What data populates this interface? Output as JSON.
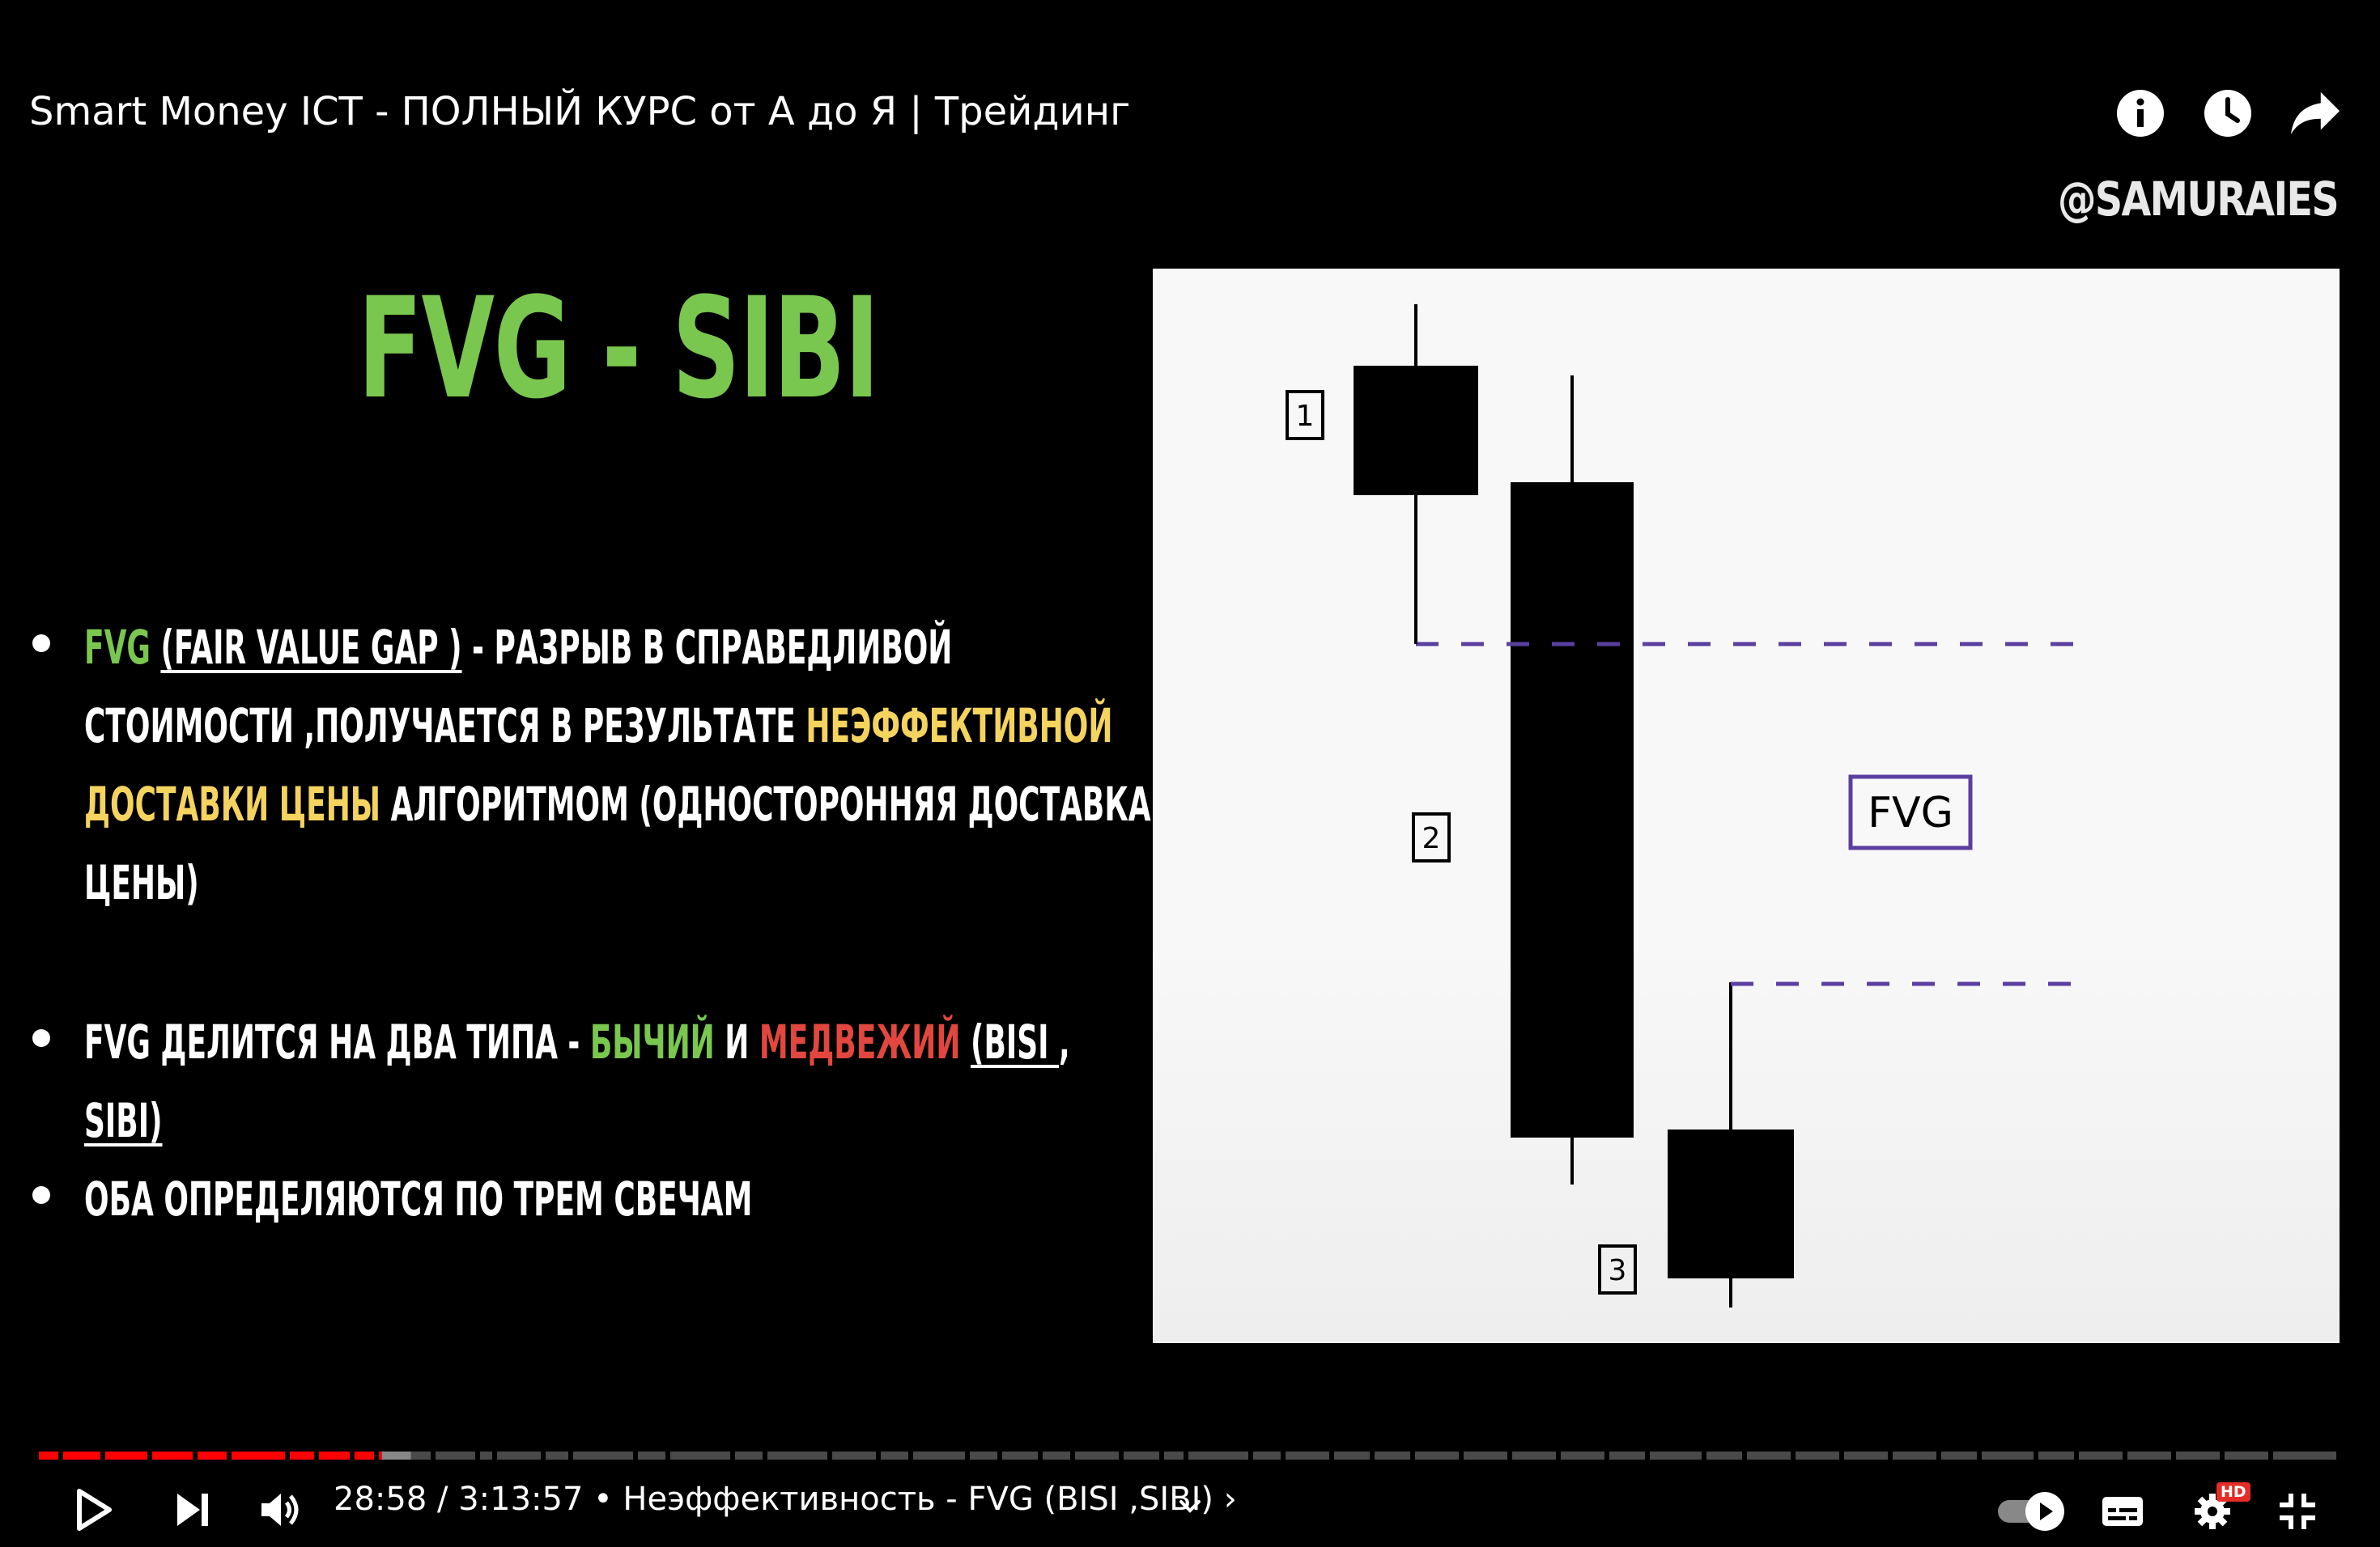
{
  "player": {
    "title": "Smart Money ICT - ПОЛНЫЙ КУРС от А до Я | Трейдинг",
    "watermark": "@SAMURAIES",
    "time_current": "28:58",
    "time_separator": " / ",
    "time_total": "3:13:57",
    "chapter_separator": "•",
    "chapter": "Неэффективность - FVG (BISI ,SIBI)",
    "chapter_arrow": "›",
    "progress_fraction": 0.149,
    "quality_badge": "HD",
    "colors": {
      "accent": "#ff0000",
      "buffer": "#888888",
      "track": "#4a4a4a"
    },
    "icons": [
      "play-icon",
      "next-icon",
      "volume-icon",
      "chevron-down-icon",
      "autoplay-toggle-icon",
      "subtitles-icon",
      "settings-icon",
      "exit-fullscreen-icon",
      "info-icon",
      "watch-later-icon",
      "share-icon"
    ]
  },
  "slide": {
    "title": "FVG - SIBI",
    "bullet1": {
      "fvg": "FVG",
      "fvg_full": "(FAIR VALUE GAP )",
      "rest1": " - РАЗРЫВ В СПРАВЕДЛИВОЙ",
      "line2": "СТОИМОСТИ ,ПОЛУЧАЕТСЯ В РЕЗУЛЬТАТЕ ",
      "highlight1": "НЕЭФФЕКТИВНОЙ",
      "highlight2": "ДОСТАВКИ ЦЕНЫ",
      "line3_rest": " АЛГОРИТМОМ (ОДНОСТОРОННЯЯ ДОСТАВКА",
      "line4": "ЦЕНЫ)"
    },
    "bullet2": {
      "part1": "FVG ДЕЛИТСЯ НА ДВА ТИПА - ",
      "bull": "БЫЧИЙ",
      "and": " И ",
      "bear": "МЕДВЕЖИЙ",
      "space": " ",
      "paren_open": "(BISI ",
      "comma": ",",
      "line2": "SIBI)"
    },
    "bullet3": "ОБА ОПРЕДЕЛЯЮТСЯ ПО ТРЕМ СВЕЧАМ",
    "colors": {
      "title": "#7ac74f",
      "green": "#7ac74f",
      "yellow": "#f4d35e",
      "red": "#e2473f"
    }
  },
  "diagram": {
    "candle_labels": [
      "1",
      "2",
      "3"
    ],
    "gap_label": "FVG",
    "colors": {
      "candle": "#000000",
      "dash": "#5a3fa0",
      "box": "#5a3fa0"
    }
  }
}
